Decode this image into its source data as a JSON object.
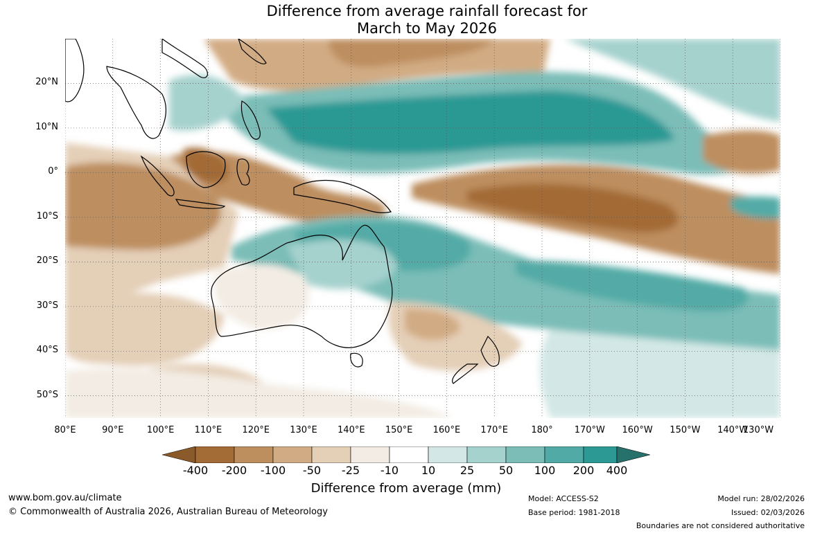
{
  "title": {
    "line1": "Difference from average rainfall forecast for",
    "line2": "March to May 2026"
  },
  "colors": {
    "dry_400": "#a36b35",
    "dry_200": "#bd8e5e",
    "dry_100": "#d1ab83",
    "dry_50": "#e4cfb7",
    "dry_25": "#f3ece4",
    "neutral": "#ffffff",
    "wet_25": "#d3e8e6",
    "wet_50": "#a6d2ce",
    "wet_100": "#7cbdb8",
    "wet_200": "#52aaa6",
    "wet_400": "#2c9994",
    "wet_max": "#26716c",
    "land_outline": "#000000",
    "grid": "#555555"
  },
  "map": {
    "lon_range": [
      80,
      230
    ],
    "lat_range": [
      -55,
      30
    ],
    "lat_ticks": [
      {
        "value": 20,
        "label": "20°N"
      },
      {
        "value": 10,
        "label": "10°N"
      },
      {
        "value": 0,
        "label": "0°"
      },
      {
        "value": -10,
        "label": "10°S"
      },
      {
        "value": -20,
        "label": "20°S"
      },
      {
        "value": -30,
        "label": "30°S"
      },
      {
        "value": -40,
        "label": "40°S"
      },
      {
        "value": -50,
        "label": "50°S"
      }
    ],
    "lon_ticks": [
      {
        "value": 80,
        "label": "80°E"
      },
      {
        "value": 90,
        "label": "90°E"
      },
      {
        "value": 100,
        "label": "100°E"
      },
      {
        "value": 110,
        "label": "110°E"
      },
      {
        "value": 120,
        "label": "120°E"
      },
      {
        "value": 130,
        "label": "130°E"
      },
      {
        "value": 140,
        "label": "140°E"
      },
      {
        "value": 150,
        "label": "150°E"
      },
      {
        "value": 160,
        "label": "160°E"
      },
      {
        "value": 170,
        "label": "170°E"
      },
      {
        "value": 180,
        "label": "180°"
      },
      {
        "value": 190,
        "label": "170°W"
      },
      {
        "value": 200,
        "label": "160°W"
      },
      {
        "value": 210,
        "label": "150°W"
      },
      {
        "value": 220,
        "label": "140°W"
      },
      {
        "value": 230,
        "label": "130°W"
      }
    ]
  },
  "colorbar": {
    "labels": [
      "-400",
      "-200",
      "-100",
      "-50",
      "-25",
      "-10",
      "10",
      "25",
      "50",
      "100",
      "200",
      "400"
    ],
    "title": "Difference from average (mm)"
  },
  "footer": {
    "website": "www.bom.gov.au/climate",
    "copyright": "© Commonwealth of Australia 2026, Australian Bureau of Meteorology",
    "model": "Model: ACCESS-S2",
    "base_period": "Base period: 1981-2018",
    "model_run": "Model run: 28/02/2026",
    "issued": "Issued: 02/03/2026",
    "boundaries_note": "Boundaries are not considered authoritative"
  }
}
